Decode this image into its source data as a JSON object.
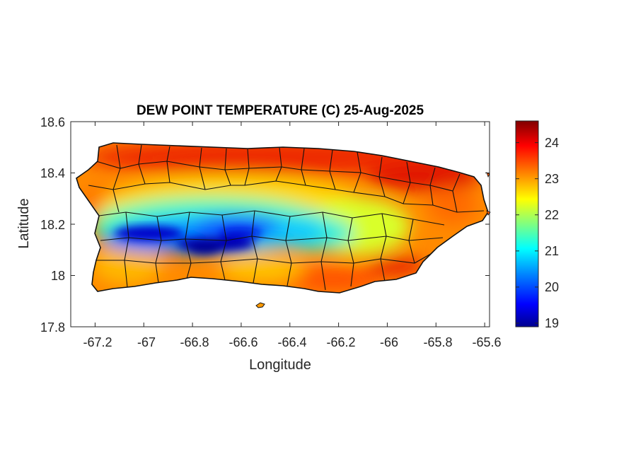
{
  "title": "DEW POINT TEMPERATURE (C) 25-Aug-2025",
  "axes": {
    "xlabel": "Longitude",
    "ylabel": "Latitude",
    "xlim": [
      -67.3,
      -65.58
    ],
    "ylim": [
      17.8,
      18.6
    ],
    "xticks": [
      "-67.2",
      "-67",
      "-66.8",
      "-66.6",
      "-66.4",
      "-66.2",
      "-66",
      "-65.8",
      "-65.6"
    ],
    "yticks": [
      "18.6",
      "18.4",
      "18.2",
      "18",
      "17.8"
    ]
  },
  "colorbar": {
    "range": [
      18.9,
      24.6
    ],
    "ticks": [
      "24",
      "23",
      "22",
      "21",
      "20",
      "19"
    ],
    "colormap": "jet",
    "stops": [
      "#00008f",
      "#0000ff",
      "#0080ff",
      "#00ffff",
      "#80ff80",
      "#ffff00",
      "#ff8000",
      "#ff0000",
      "#800000"
    ]
  },
  "chart_data": {
    "type": "heatmap",
    "title": "DEW POINT TEMPERATURE (C) 25-Aug-2025",
    "xlabel": "Longitude",
    "ylabel": "Latitude",
    "xlim": [
      -67.3,
      -65.58
    ],
    "ylim": [
      17.8,
      18.6
    ],
    "value_range": [
      18.9,
      24.6
    ],
    "grid": false,
    "region_summary": [
      {
        "lon": -66.45,
        "lat": 18.47,
        "dewpoint": 24.0
      },
      {
        "lon": -66.05,
        "lat": 18.43,
        "dewpoint": 24.3
      },
      {
        "lon": -65.75,
        "lat": 18.35,
        "dewpoint": 23.6
      },
      {
        "lon": -67.2,
        "lat": 18.36,
        "dewpoint": 23.3
      },
      {
        "lon": -66.97,
        "lat": 18.15,
        "dewpoint": 19.4
      },
      {
        "lon": -66.8,
        "lat": 18.13,
        "dewpoint": 19.2
      },
      {
        "lon": -66.6,
        "lat": 18.2,
        "dewpoint": 20.2
      },
      {
        "lon": -66.35,
        "lat": 18.18,
        "dewpoint": 21.2
      },
      {
        "lon": -66.1,
        "lat": 18.23,
        "dewpoint": 22.4
      },
      {
        "lon": -65.85,
        "lat": 18.1,
        "dewpoint": 23.8
      },
      {
        "lon": -66.5,
        "lat": 17.98,
        "dewpoint": 23.0
      },
      {
        "lon": -67.15,
        "lat": 18.02,
        "dewpoint": 22.3
      }
    ]
  }
}
